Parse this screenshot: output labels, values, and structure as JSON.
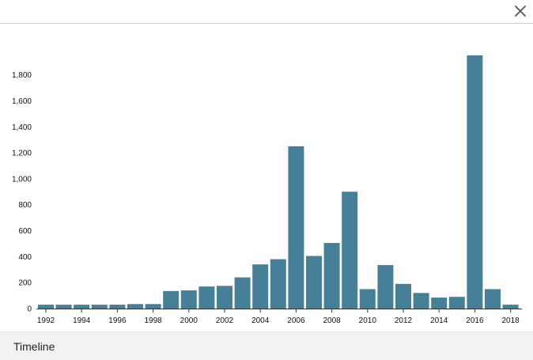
{
  "panel": {
    "footer_title": "Timeline",
    "close_icon": "close-icon"
  },
  "colors": {
    "bar": "#467f98",
    "axis": "#333333",
    "text": "#111111"
  },
  "chart_data": {
    "type": "bar",
    "title": "",
    "xlabel": "",
    "ylabel": "",
    "grid": false,
    "legend": "none",
    "ylim": [
      0,
      1950
    ],
    "categories": [
      "1992",
      "1993",
      "1994",
      "1995",
      "1996",
      "1997",
      "1998",
      "1999",
      "2000",
      "2001",
      "2002",
      "2003",
      "2004",
      "2005",
      "2006",
      "2007",
      "2008",
      "2009",
      "2010",
      "2011",
      "2012",
      "2013",
      "2014",
      "2015",
      "2016",
      "2017",
      "2018"
    ],
    "values": [
      30,
      30,
      30,
      30,
      30,
      35,
      35,
      135,
      140,
      170,
      175,
      240,
      340,
      380,
      1250,
      405,
      505,
      900,
      150,
      335,
      190,
      120,
      85,
      90,
      1950,
      150,
      30
    ],
    "x_tick_labels": [
      "1992",
      "1994",
      "1996",
      "1998",
      "2000",
      "2002",
      "2004",
      "2006",
      "2008",
      "2010",
      "2012",
      "2014",
      "2016",
      "2018"
    ],
    "y_ticks": [
      0,
      200,
      400,
      600,
      800,
      1000,
      1200,
      1400,
      1600,
      1800
    ],
    "y_tick_labels": [
      "0",
      "200",
      "400",
      "600",
      "800",
      "1,000",
      "1,200",
      "1,400",
      "1,600",
      "1,800"
    ]
  }
}
